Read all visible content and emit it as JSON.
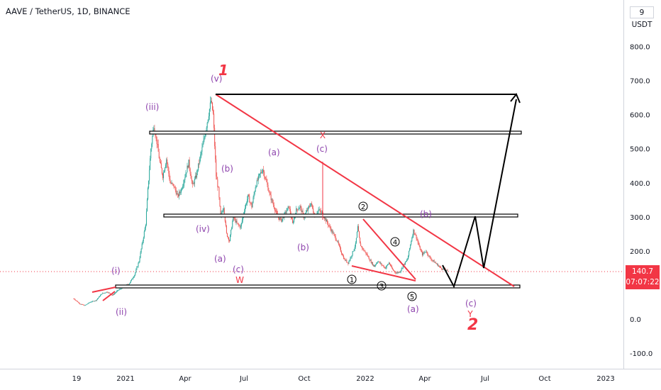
{
  "header": {
    "symbol": "AAVE / TetherUS, 1D, BINANCE",
    "unit": "USDT",
    "unit_prefix": "9"
  },
  "last_price": {
    "value": "140.7",
    "countdown": "07:07:22",
    "color": "#f23645"
  },
  "colors": {
    "candle_up": "#26a69a",
    "candle_down": "#ef5350",
    "trendline": "#f23645",
    "wave_label": "#8e44ad",
    "marker": "#f23645",
    "box": "#000000"
  },
  "chart_data": {
    "type": "candlestick",
    "title": "AAVE / TetherUS, 1D, BINANCE",
    "xlabel": "",
    "ylabel": "",
    "ylim": [
      -130,
      960
    ],
    "y_ticks": [
      "800.0",
      "700.0",
      "600.0",
      "500.0",
      "400.0",
      "300.0",
      "200.0",
      "100.0",
      "0.0",
      "-100.0"
    ],
    "x_ticks": [
      "19",
      "2021",
      "Apr",
      "Jul",
      "Oct",
      "2022",
      "Apr",
      "Jul",
      "Oct",
      "2023"
    ],
    "grid": false,
    "price_path": [
      [
        0,
        60
      ],
      [
        8,
        45
      ],
      [
        15,
        40
      ],
      [
        22,
        50
      ],
      [
        30,
        55
      ],
      [
        38,
        75
      ],
      [
        45,
        80
      ],
      [
        52,
        70
      ],
      [
        60,
        85
      ],
      [
        68,
        95
      ],
      [
        75,
        105
      ],
      [
        82,
        130
      ],
      [
        88,
        170
      ],
      [
        93,
        230
      ],
      [
        97,
        280
      ],
      [
        100,
        380
      ],
      [
        104,
        500
      ],
      [
        108,
        570
      ],
      [
        112,
        520
      ],
      [
        116,
        460
      ],
      [
        120,
        420
      ],
      [
        125,
        470
      ],
      [
        130,
        400
      ],
      [
        135,
        390
      ],
      [
        140,
        360
      ],
      [
        145,
        380
      ],
      [
        150,
        420
      ],
      [
        155,
        460
      ],
      [
        160,
        390
      ],
      [
        165,
        420
      ],
      [
        170,
        470
      ],
      [
        175,
        520
      ],
      [
        180,
        580
      ],
      [
        185,
        640
      ],
      [
        188,
        600
      ],
      [
        192,
        420
      ],
      [
        195,
        380
      ],
      [
        198,
        300
      ],
      [
        202,
        330
      ],
      [
        206,
        250
      ],
      [
        210,
        230
      ],
      [
        215,
        300
      ],
      [
        220,
        280
      ],
      [
        225,
        270
      ],
      [
        230,
        320
      ],
      [
        235,
        360
      ],
      [
        240,
        330
      ],
      [
        245,
        390
      ],
      [
        250,
        420
      ],
      [
        255,
        440
      ],
      [
        260,
        400
      ],
      [
        265,
        360
      ],
      [
        270,
        330
      ],
      [
        275,
        300
      ],
      [
        280,
        290
      ],
      [
        285,
        310
      ],
      [
        290,
        330
      ],
      [
        295,
        280
      ],
      [
        300,
        320
      ],
      [
        305,
        330
      ],
      [
        310,
        300
      ],
      [
        315,
        320
      ],
      [
        320,
        340
      ],
      [
        325,
        300
      ],
      [
        330,
        320
      ],
      [
        335,
        310
      ],
      [
        340,
        290
      ],
      [
        345,
        270
      ],
      [
        350,
        250
      ],
      [
        355,
        230
      ],
      [
        360,
        200
      ],
      [
        365,
        175
      ],
      [
        370,
        165
      ],
      [
        375,
        190
      ],
      [
        380,
        220
      ],
      [
        383,
        270
      ],
      [
        386,
        220
      ],
      [
        390,
        205
      ],
      [
        395,
        190
      ],
      [
        400,
        170
      ],
      [
        405,
        155
      ],
      [
        410,
        170
      ],
      [
        415,
        160
      ],
      [
        420,
        150
      ],
      [
        425,
        165
      ],
      [
        430,
        145
      ],
      [
        435,
        135
      ],
      [
        440,
        140
      ],
      [
        445,
        160
      ],
      [
        450,
        175
      ],
      [
        455,
        230
      ],
      [
        458,
        260
      ],
      [
        462,
        240
      ],
      [
        466,
        210
      ],
      [
        470,
        190
      ],
      [
        475,
        200
      ],
      [
        480,
        180
      ],
      [
        485,
        170
      ],
      [
        490,
        160
      ],
      [
        495,
        150
      ],
      [
        500,
        145
      ],
      [
        504,
        140.7
      ]
    ],
    "annotations": {
      "wave_labels": [
        "(v)",
        "(iii)",
        "(i)",
        "(ii)",
        "(iv)",
        "(a)",
        "(c)",
        "(b)",
        "(a)",
        "(c)",
        "(b)",
        "(b)",
        "(a)",
        "(c)"
      ],
      "circled_labels": [
        "2",
        "4",
        "1",
        "3",
        "5"
      ],
      "degree_labels": [
        "1",
        "2"
      ],
      "markers": [
        "X",
        "W",
        "Y"
      ]
    }
  }
}
